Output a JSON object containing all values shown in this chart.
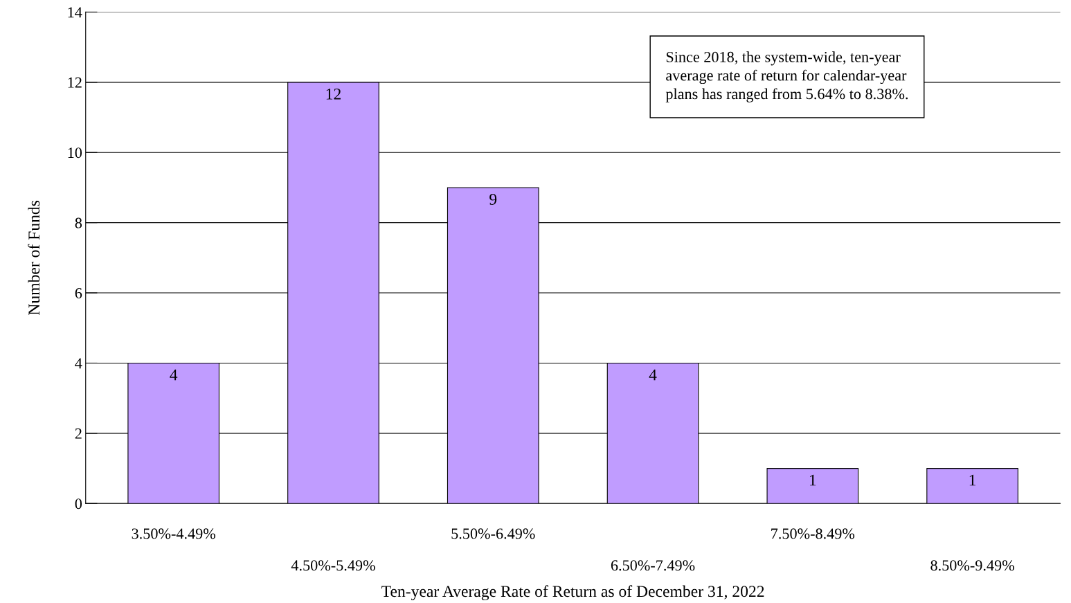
{
  "chart_data": {
    "type": "bar",
    "xlabel": "Ten-year Average Rate of Return as of December 31, 2022",
    "ylabel": "Number of Funds",
    "categories": [
      "3.50%-4.49%",
      "4.50%-5.49%",
      "5.50%-6.49%",
      "6.50%-7.49%",
      "7.50%-8.49%",
      "8.50%-9.49%"
    ],
    "values": [
      4,
      12,
      9,
      4,
      1,
      1
    ],
    "color": "#c09cff",
    "data_labels": true,
    "ylim": [
      0,
      14
    ],
    "yticks": [
      0,
      2,
      4,
      6,
      8,
      10,
      12,
      14
    ],
    "grid": "y",
    "annotations": [
      "Since 2018, the system-wide, ten-year\naverage rate of return for calendar-year\nplans has ranged from 5.64% to 8.38%."
    ]
  }
}
